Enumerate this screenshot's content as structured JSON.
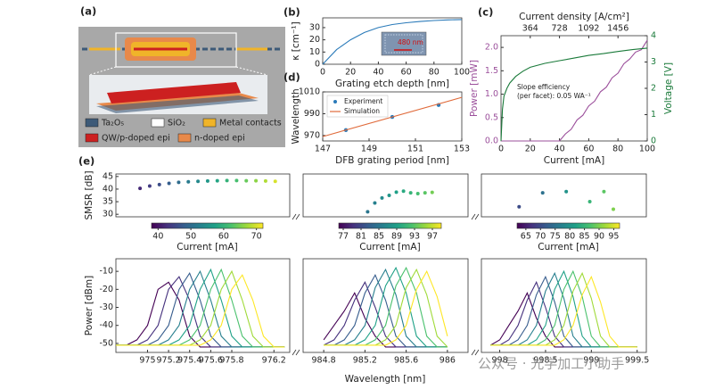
{
  "panel_labels": [
    "(a)",
    "(b)",
    "(c)",
    "(d)",
    "(e)"
  ],
  "legend_a": [
    "Ta₂O₅",
    "SiO₂",
    "Metal contacts",
    "QW/p-doped epi",
    "n-doped epi"
  ],
  "watermark": "公众号 · 光学加工小助手",
  "chart_data": [
    {
      "type": "line",
      "xlabel": "Grating etch depth [nm]",
      "ylabel": "κ [cm⁻¹]",
      "annotation": "480 nm",
      "x": [
        0,
        10,
        20,
        30,
        40,
        50,
        60,
        70,
        80,
        90,
        100
      ],
      "xlim": [
        0,
        100
      ],
      "xticks": [
        0,
        20,
        40,
        60,
        80,
        100
      ],
      "ylim": [
        0,
        38
      ],
      "yticks": [
        0,
        10,
        20,
        30
      ],
      "series": [
        {
          "color": "#2a7ab9",
          "values": [
            0,
            12,
            20,
            26,
            30,
            32.5,
            34,
            35,
            35.8,
            36.3,
            36.6
          ]
        }
      ]
    },
    {
      "type": "combo",
      "xlabel": "DFB grating period [nm]",
      "ylabel": "Wavelength",
      "xlim": [
        147,
        153
      ],
      "xticks": [
        147,
        149,
        151,
        153
      ],
      "ylim": [
        965,
        1010
      ],
      "yticks": [
        970,
        990,
        1010
      ],
      "series": [
        {
          "name": "Experiment",
          "type": "scatter",
          "color": "#2a7ab9",
          "x": [
            148,
            150,
            152
          ],
          "values": [
            975,
            987,
            998
          ]
        },
        {
          "name": "Simulation",
          "type": "line",
          "color": "#e06a3a",
          "x": [
            147,
            153
          ],
          "values": [
            969,
            1005
          ]
        }
      ]
    },
    {
      "type": "line",
      "xlabel": "Current [mA]",
      "ylabel": "Power [mW]",
      "y2label": "Voltage [V]",
      "x2label": "Current density [A/cm²]",
      "annotations": [
        "Slope efficiency",
        "(per facet): 0.05 WA⁻¹"
      ],
      "xlim": [
        0,
        100
      ],
      "xticks": [
        0,
        20,
        40,
        60,
        80,
        100
      ],
      "x2lim": [
        0,
        1820
      ],
      "x2ticks": [
        364,
        728,
        1092,
        1456
      ],
      "ylim": [
        0,
        2.25
      ],
      "yticks": [
        {
          "value": 0,
          "label": "0.0"
        },
        {
          "value": 0.5,
          "label": "0.5"
        },
        {
          "value": 1,
          "label": "1.0"
        },
        {
          "value": 1.5,
          "label": "1.5"
        },
        {
          "value": 2,
          "label": "2.0"
        }
      ],
      "y2lim": [
        0,
        4
      ],
      "y2ticks": [
        0,
        1,
        2,
        3,
        4
      ],
      "series": [
        {
          "name": "Power",
          "color": "#9b4f9b",
          "x": [
            0,
            40,
            44,
            48,
            52,
            56,
            60,
            64,
            68,
            72,
            76,
            80,
            84,
            88,
            92,
            96,
            100
          ],
          "values": [
            0,
            0,
            0.15,
            0.25,
            0.45,
            0.55,
            0.75,
            0.85,
            1.05,
            1.15,
            1.35,
            1.45,
            1.65,
            1.75,
            1.9,
            1.95,
            2.15
          ]
        },
        {
          "name": "Voltage",
          "axis": "y2",
          "color": "#1a7a3a",
          "x": [
            0,
            1,
            2,
            4,
            6,
            10,
            15,
            20,
            30,
            40,
            50,
            60,
            70,
            80,
            90,
            100
          ],
          "values": [
            0,
            1.2,
            1.7,
            2.0,
            2.2,
            2.45,
            2.65,
            2.8,
            2.95,
            3.05,
            3.15,
            3.25,
            3.32,
            3.4,
            3.47,
            3.53
          ]
        }
      ]
    },
    {
      "type": "scatter",
      "ylabel": "SMSR [dB]",
      "xlim": [
        37,
        73
      ],
      "ylim": [
        29,
        46
      ],
      "yticks": [
        30,
        35,
        40,
        45
      ],
      "colorbar": {
        "label": "Current [mA]",
        "lim": [
          38,
          72
        ],
        "ticks": [
          40,
          50,
          60,
          70
        ],
        "colors": [
          "#440154",
          "#46327e",
          "#365c8d",
          "#277f8e",
          "#1fa187",
          "#4ac16d",
          "#a0da39",
          "#fde725"
        ]
      },
      "series": [
        {
          "x": [
            42,
            44,
            46,
            48,
            50,
            52,
            54,
            56,
            58,
            60,
            62,
            64,
            66,
            68,
            70
          ],
          "values": [
            40.3,
            41.2,
            41.8,
            42.3,
            42.7,
            42.9,
            43.1,
            43.2,
            43.3,
            43.4,
            43.4,
            43.3,
            43.3,
            43.2,
            43.1
          ]
        }
      ]
    },
    {
      "type": "scatter",
      "xlim": [
        76,
        99
      ],
      "ylim": [
        29,
        46
      ],
      "colorbar": {
        "label": "Current [mA]",
        "lim": [
          76,
          99
        ],
        "ticks": [
          77,
          81,
          85,
          89,
          93,
          97
        ],
        "colors": [
          "#440154",
          "#46327e",
          "#365c8d",
          "#277f8e",
          "#1fa187",
          "#4ac16d",
          "#a0da39",
          "#fde725"
        ]
      },
      "series": [
        {
          "x": [
            85,
            86,
            87,
            88,
            89,
            90,
            91,
            92,
            93,
            94
          ],
          "values": [
            31,
            34.5,
            36.5,
            37.5,
            38.8,
            39.2,
            38.5,
            38.2,
            38.5,
            38.7
          ]
        }
      ]
    },
    {
      "type": "scatter",
      "xlim": [
        62,
        97
      ],
      "ylim": [
        29,
        46
      ],
      "colorbar": {
        "label": "Current [mA]",
        "lim": [
          62,
          97
        ],
        "ticks": [
          65,
          70,
          75,
          80,
          85,
          90,
          95
        ],
        "colors": [
          "#440154",
          "#46327e",
          "#365c8d",
          "#277f8e",
          "#1fa187",
          "#4ac16d",
          "#a0da39",
          "#fde725"
        ]
      },
      "series": [
        {
          "x": [
            70,
            75,
            80,
            85,
            88,
            90
          ],
          "values": [
            33,
            38.5,
            39,
            35,
            39,
            32
          ]
        }
      ]
    },
    {
      "type": "line",
      "ylabel": "Power [dBm]",
      "x": [
        974.7,
        974.8,
        974.9,
        975,
        975.1,
        975.2,
        975.3,
        975.4,
        975.5,
        975.6,
        975.7,
        975.8,
        975.9,
        976,
        976.1,
        976.2,
        976.3
      ],
      "xlim": [
        974.7,
        976.35
      ],
      "xticks": [
        975,
        975.2,
        975.4,
        975.6,
        975.8,
        976.2
      ],
      "ylim": [
        -55,
        -3
      ],
      "yticks": [
        -50,
        -40,
        -30,
        -20,
        -10
      ],
      "series": [
        {
          "color": "#440154",
          "values": [
            -51,
            -51,
            -48,
            -40,
            -20,
            -16,
            -26,
            -46,
            -52,
            -52,
            -52,
            -52,
            -52,
            -52,
            -52,
            -52,
            -52
          ]
        },
        {
          "color": "#46327e",
          "values": [
            -51,
            -51,
            -51,
            -48,
            -40,
            -20,
            -13,
            -26,
            -46,
            -52,
            -52,
            -52,
            -52,
            -52,
            -52,
            -52,
            -52
          ]
        },
        {
          "color": "#365c8d",
          "values": [
            -51,
            -51,
            -51,
            -51,
            -48,
            -40,
            -20,
            -11,
            -26,
            -46,
            -52,
            -52,
            -52,
            -52,
            -52,
            -52,
            -52
          ]
        },
        {
          "color": "#277f8e",
          "values": [
            -51,
            -51,
            -51,
            -51,
            -51,
            -48,
            -40,
            -20,
            -10,
            -26,
            -46,
            -52,
            -52,
            -52,
            -52,
            -52,
            -52
          ]
        },
        {
          "color": "#1fa187",
          "values": [
            -51,
            -51,
            -51,
            -51,
            -51,
            -51,
            -48,
            -40,
            -20,
            -9,
            -26,
            -46,
            -52,
            -52,
            -52,
            -52,
            -52
          ]
        },
        {
          "color": "#4ac16d",
          "values": [
            -51,
            -51,
            -51,
            -51,
            -51,
            -51,
            -51,
            -48,
            -40,
            -20,
            -9,
            -26,
            -46,
            -52,
            -52,
            -52,
            -52
          ]
        },
        {
          "color": "#a0da39",
          "values": [
            -51,
            -51,
            -51,
            -51,
            -51,
            -51,
            -51,
            -51,
            -48,
            -40,
            -20,
            -10,
            -26,
            -46,
            -52,
            -52,
            -52
          ]
        },
        {
          "color": "#fde725",
          "values": [
            -51,
            -51,
            -51,
            -51,
            -51,
            -51,
            -51,
            -51,
            -51,
            -48,
            -40,
            -20,
            -12,
            -26,
            -46,
            -52,
            -52
          ]
        }
      ]
    },
    {
      "type": "line",
      "xlabel": "Wavelength [nm]",
      "x": [
        984.8,
        984.9,
        985,
        985.1,
        985.2,
        985.3,
        985.4,
        985.5,
        985.6,
        985.7,
        985.8,
        985.9,
        986
      ],
      "xlim": [
        984.6,
        986.2
      ],
      "xticks": [
        984.8,
        985.2,
        985.6,
        986
      ],
      "ylim": [
        -55,
        -3
      ],
      "series": [
        {
          "color": "#440154",
          "values": [
            -48,
            -40,
            -32,
            -22,
            -36,
            -46,
            -52,
            -52,
            -52,
            -52,
            -52,
            -52,
            -52
          ]
        },
        {
          "color": "#46327e",
          "values": [
            -51,
            -48,
            -40,
            -26,
            -16,
            -30,
            -46,
            -52,
            -52,
            -52,
            -52,
            -52,
            -52
          ]
        },
        {
          "color": "#365c8d",
          "values": [
            -51,
            -51,
            -48,
            -40,
            -22,
            -12,
            -26,
            -46,
            -52,
            -52,
            -52,
            -52,
            -52
          ]
        },
        {
          "color": "#277f8e",
          "values": [
            -51,
            -51,
            -51,
            -48,
            -40,
            -19,
            -9,
            -23,
            -46,
            -52,
            -52,
            -52,
            -52
          ]
        },
        {
          "color": "#1fa187",
          "values": [
            -51,
            -51,
            -51,
            -51,
            -48,
            -40,
            -18,
            -8,
            -22,
            -46,
            -52,
            -52,
            -52
          ]
        },
        {
          "color": "#4ac16d",
          "values": [
            -51,
            -51,
            -51,
            -51,
            -51,
            -48,
            -40,
            -18,
            -8,
            -22,
            -46,
            -52,
            -52
          ]
        },
        {
          "color": "#a0da39",
          "values": [
            -51,
            -51,
            -51,
            -51,
            -51,
            -51,
            -48,
            -40,
            -19,
            -9,
            -23,
            -46,
            -52
          ]
        },
        {
          "color": "#fde725",
          "values": [
            -51,
            -51,
            -51,
            -51,
            -51,
            -51,
            -51,
            -48,
            -40,
            -20,
            -10,
            -24,
            -46
          ]
        }
      ]
    },
    {
      "type": "line",
      "x": [
        997.9,
        998,
        998.1,
        998.2,
        998.3,
        998.4,
        998.5,
        998.6,
        998.7,
        998.8,
        998.9,
        999,
        999.1,
        999.2,
        999.3,
        999.4,
        999.5
      ],
      "xlim": [
        997.8,
        999.6
      ],
      "xticks": [
        998,
        998.5,
        999,
        999.5
      ],
      "ylim": [
        -55,
        -3
      ],
      "series": [
        {
          "color": "#440154",
          "values": [
            -51,
            -48,
            -40,
            -32,
            -22,
            -36,
            -46,
            -52,
            -52,
            -52,
            -52,
            -52,
            -52,
            -52,
            -52,
            -52,
            -52
          ]
        },
        {
          "color": "#46327e",
          "values": [
            -51,
            -51,
            -48,
            -40,
            -26,
            -16,
            -30,
            -46,
            -52,
            -52,
            -52,
            -52,
            -52,
            -52,
            -52,
            -52,
            -52
          ]
        },
        {
          "color": "#365c8d",
          "values": [
            -51,
            -51,
            -51,
            -48,
            -40,
            -23,
            -13,
            -27,
            -46,
            -52,
            -52,
            -52,
            -52,
            -52,
            -52,
            -52,
            -52
          ]
        },
        {
          "color": "#277f8e",
          "values": [
            -51,
            -51,
            -51,
            -51,
            -48,
            -40,
            -21,
            -11,
            -25,
            -46,
            -52,
            -52,
            -52,
            -52,
            -52,
            -52,
            -52
          ]
        },
        {
          "color": "#1fa187",
          "values": [
            -51,
            -51,
            -51,
            -51,
            -51,
            -48,
            -40,
            -20,
            -10,
            -24,
            -46,
            -52,
            -52,
            -52,
            -52,
            -52,
            -52
          ]
        },
        {
          "color": "#4ac16d",
          "values": [
            -51,
            -51,
            -51,
            -51,
            -51,
            -51,
            -48,
            -40,
            -20,
            -10,
            -24,
            -46,
            -52,
            -52,
            -52,
            -52,
            -52
          ]
        },
        {
          "color": "#a0da39",
          "values": [
            -51,
            -51,
            -51,
            -51,
            -51,
            -51,
            -51,
            -48,
            -40,
            -21,
            -11,
            -25,
            -46,
            -52,
            -52,
            -52,
            -52
          ]
        },
        {
          "color": "#fde725",
          "values": [
            -51,
            -51,
            -51,
            -51,
            -51,
            -51,
            -51,
            -51,
            -48,
            -40,
            -23,
            -13,
            -27,
            -46,
            -52,
            -52,
            -52
          ]
        }
      ]
    }
  ]
}
